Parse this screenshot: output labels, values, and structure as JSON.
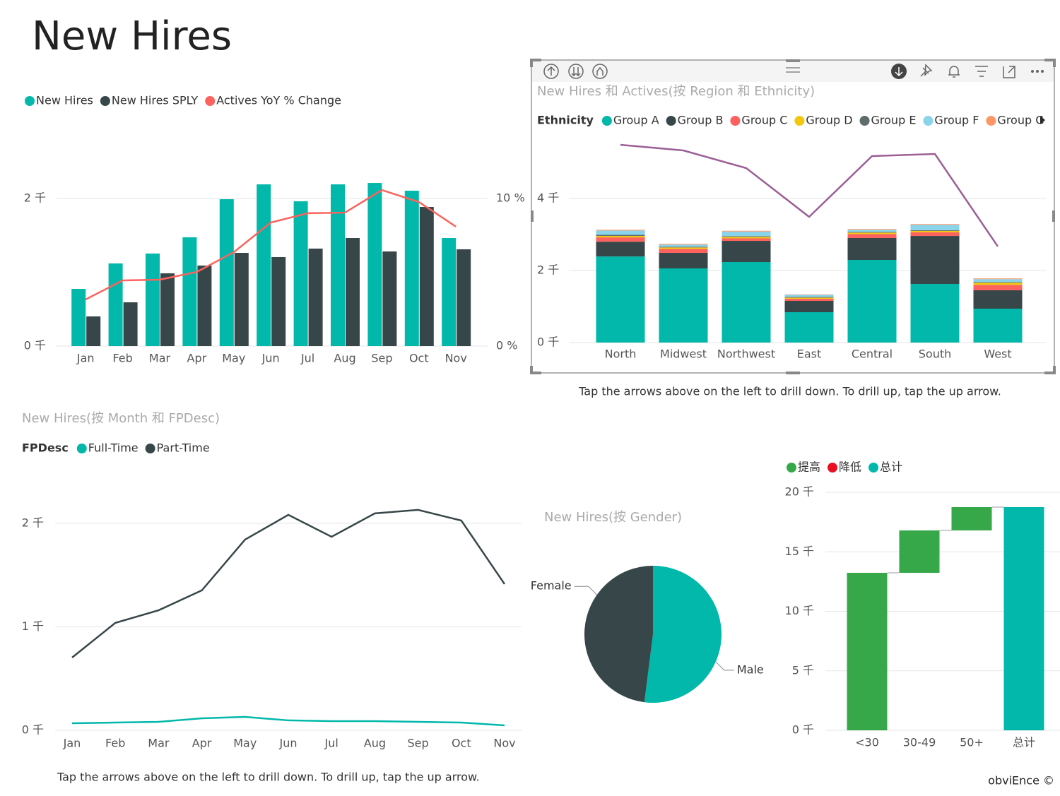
{
  "title": "New Hires",
  "chart_data": [
    {
      "type": "bar",
      "categories": [
        "Jan",
        "Feb",
        "Mar",
        "Apr",
        "May",
        "Jun",
        "Jul",
        "Aug",
        "Sep",
        "Oct",
        "Nov"
      ],
      "series": [
        {
          "name": "New Hires",
          "color": "#01b8aa",
          "values": [
            775,
            1120,
            1254,
            1474,
            1990,
            2191,
            1962,
            2191,
            2210,
            2105,
            1464
          ]
        },
        {
          "name": "New Hires SPLY",
          "color": "#374649",
          "values": [
            402,
            593,
            986,
            1091,
            1263,
            1206,
            1321,
            1464,
            1282,
            1885,
            1311
          ]
        },
        {
          "name": "Actives YoY % Change",
          "color": "#fd625e",
          "type": "line",
          "axis": "y2",
          "values": [
            3.16,
            4.45,
            4.5,
            5.02,
            6.36,
            8.37,
            9.0,
            9.04,
            10.57,
            9.76,
            8.09
          ]
        }
      ],
      "ylim": [
        0,
        2800
      ],
      "yticks": [
        {
          "value": 0,
          "label": "0 千"
        },
        {
          "value": 2000,
          "label": "2 千"
        }
      ],
      "y2lim": [
        0,
        14
      ],
      "y2ticks": [
        {
          "value": 0,
          "label": "0 %"
        },
        {
          "value": 10,
          "label": "10 %"
        }
      ],
      "grid": true,
      "legend": "top-left"
    },
    {
      "type": "stacked_bar",
      "title": "New Hires 和 Actives(按 Region 和 Ethnicity)",
      "legend_title": "Ethnicity",
      "categories": [
        "North",
        "Midwest",
        "Northwest",
        "East",
        "Central",
        "South",
        "West"
      ],
      "series": [
        {
          "name": "Group A",
          "color": "#01b8aa",
          "values": [
            2390,
            2059,
            2235,
            843,
            2294,
            1627,
            941
          ]
        },
        {
          "name": "Group B",
          "color": "#374649",
          "values": [
            410,
            431,
            588,
            314,
            608,
            1333,
            510
          ]
        },
        {
          "name": "Group C",
          "color": "#fd625e",
          "values": [
            120,
            110,
            70,
            60,
            110,
            100,
            150
          ]
        },
        {
          "name": "Group D",
          "color": "#f2c80f",
          "values": [
            40,
            40,
            40,
            30,
            40,
            40,
            60
          ]
        },
        {
          "name": "Group E",
          "color": "#5f6b6d",
          "values": [
            30,
            20,
            20,
            20,
            20,
            20,
            20
          ]
        },
        {
          "name": "Group F",
          "color": "#8ad4eb",
          "values": [
            120,
            60,
            130,
            60,
            60,
            150,
            80
          ]
        },
        {
          "name": "Group G",
          "color": "#fe9666",
          "values": [
            20,
            20,
            20,
            10,
            20,
            20,
            20
          ]
        }
      ],
      "line": {
        "color": "#9b5f96",
        "values": [
          5490,
          5333,
          4843,
          3490,
          5176,
          5235,
          2667
        ]
      },
      "ylim": [
        0,
        5600
      ],
      "yticks": [
        {
          "value": 0,
          "label": "0 千"
        },
        {
          "value": 2000,
          "label": "2 千"
        },
        {
          "value": 4000,
          "label": "4 千"
        }
      ],
      "grid": true,
      "legend": "top-left",
      "note": "Tap the arrows above on the left to drill down. To drill up, tap the up arrow."
    },
    {
      "type": "line",
      "title": "New Hires(按 Month 和 FPDesc)",
      "legend_title": "FPDesc",
      "categories": [
        "Jan",
        "Feb",
        "Mar",
        "Apr",
        "May",
        "Jun",
        "Jul",
        "Aug",
        "Sep",
        "Oct",
        "Nov"
      ],
      "series": [
        {
          "name": "Full-Time",
          "color": "#01b8aa",
          "values": [
            68,
            75,
            82,
            116,
            130,
            96,
            89,
            89,
            82,
            75,
            48
          ]
        },
        {
          "name": "Part-Time",
          "color": "#374649",
          "values": [
            703,
            1038,
            1160,
            1352,
            1843,
            2082,
            1870,
            2096,
            2130,
            2027,
            1413
          ]
        }
      ],
      "ylim": [
        0,
        2300
      ],
      "yticks": [
        {
          "value": 0,
          "label": "0 千"
        },
        {
          "value": 1000,
          "label": "1 千"
        },
        {
          "value": 2000,
          "label": "2 千"
        }
      ],
      "grid": true,
      "legend": "top-left",
      "note": "Tap the arrows above on the left to drill down. To drill up, tap the up arrow."
    },
    {
      "type": "pie",
      "title": "New Hires(按 Gender)",
      "categories": [
        "Male",
        "Female"
      ],
      "values": [
        52,
        48
      ],
      "colors": [
        "#01b8aa",
        "#374649"
      ]
    },
    {
      "type": "waterfall",
      "categories": [
        "<30",
        "30-49",
        "50+",
        "总计"
      ],
      "values": [
        13234,
        3561,
        1958,
        18753
      ],
      "legend_items": [
        {
          "name": "提高",
          "color": "#37a849"
        },
        {
          "name": "降低",
          "color": "#e81123"
        },
        {
          "name": "总计",
          "color": "#01b8aa"
        }
      ],
      "ylim": [
        0,
        20000
      ],
      "yticks": [
        {
          "value": 0,
          "label": "0 千"
        },
        {
          "value": 5000,
          "label": "5 千"
        },
        {
          "value": 10000,
          "label": "10 千"
        },
        {
          "value": 15000,
          "label": "15 千"
        },
        {
          "value": 20000,
          "label": "20 千"
        }
      ],
      "grid": true,
      "legend": "top-left"
    }
  ],
  "footer": "obviEnce ©"
}
